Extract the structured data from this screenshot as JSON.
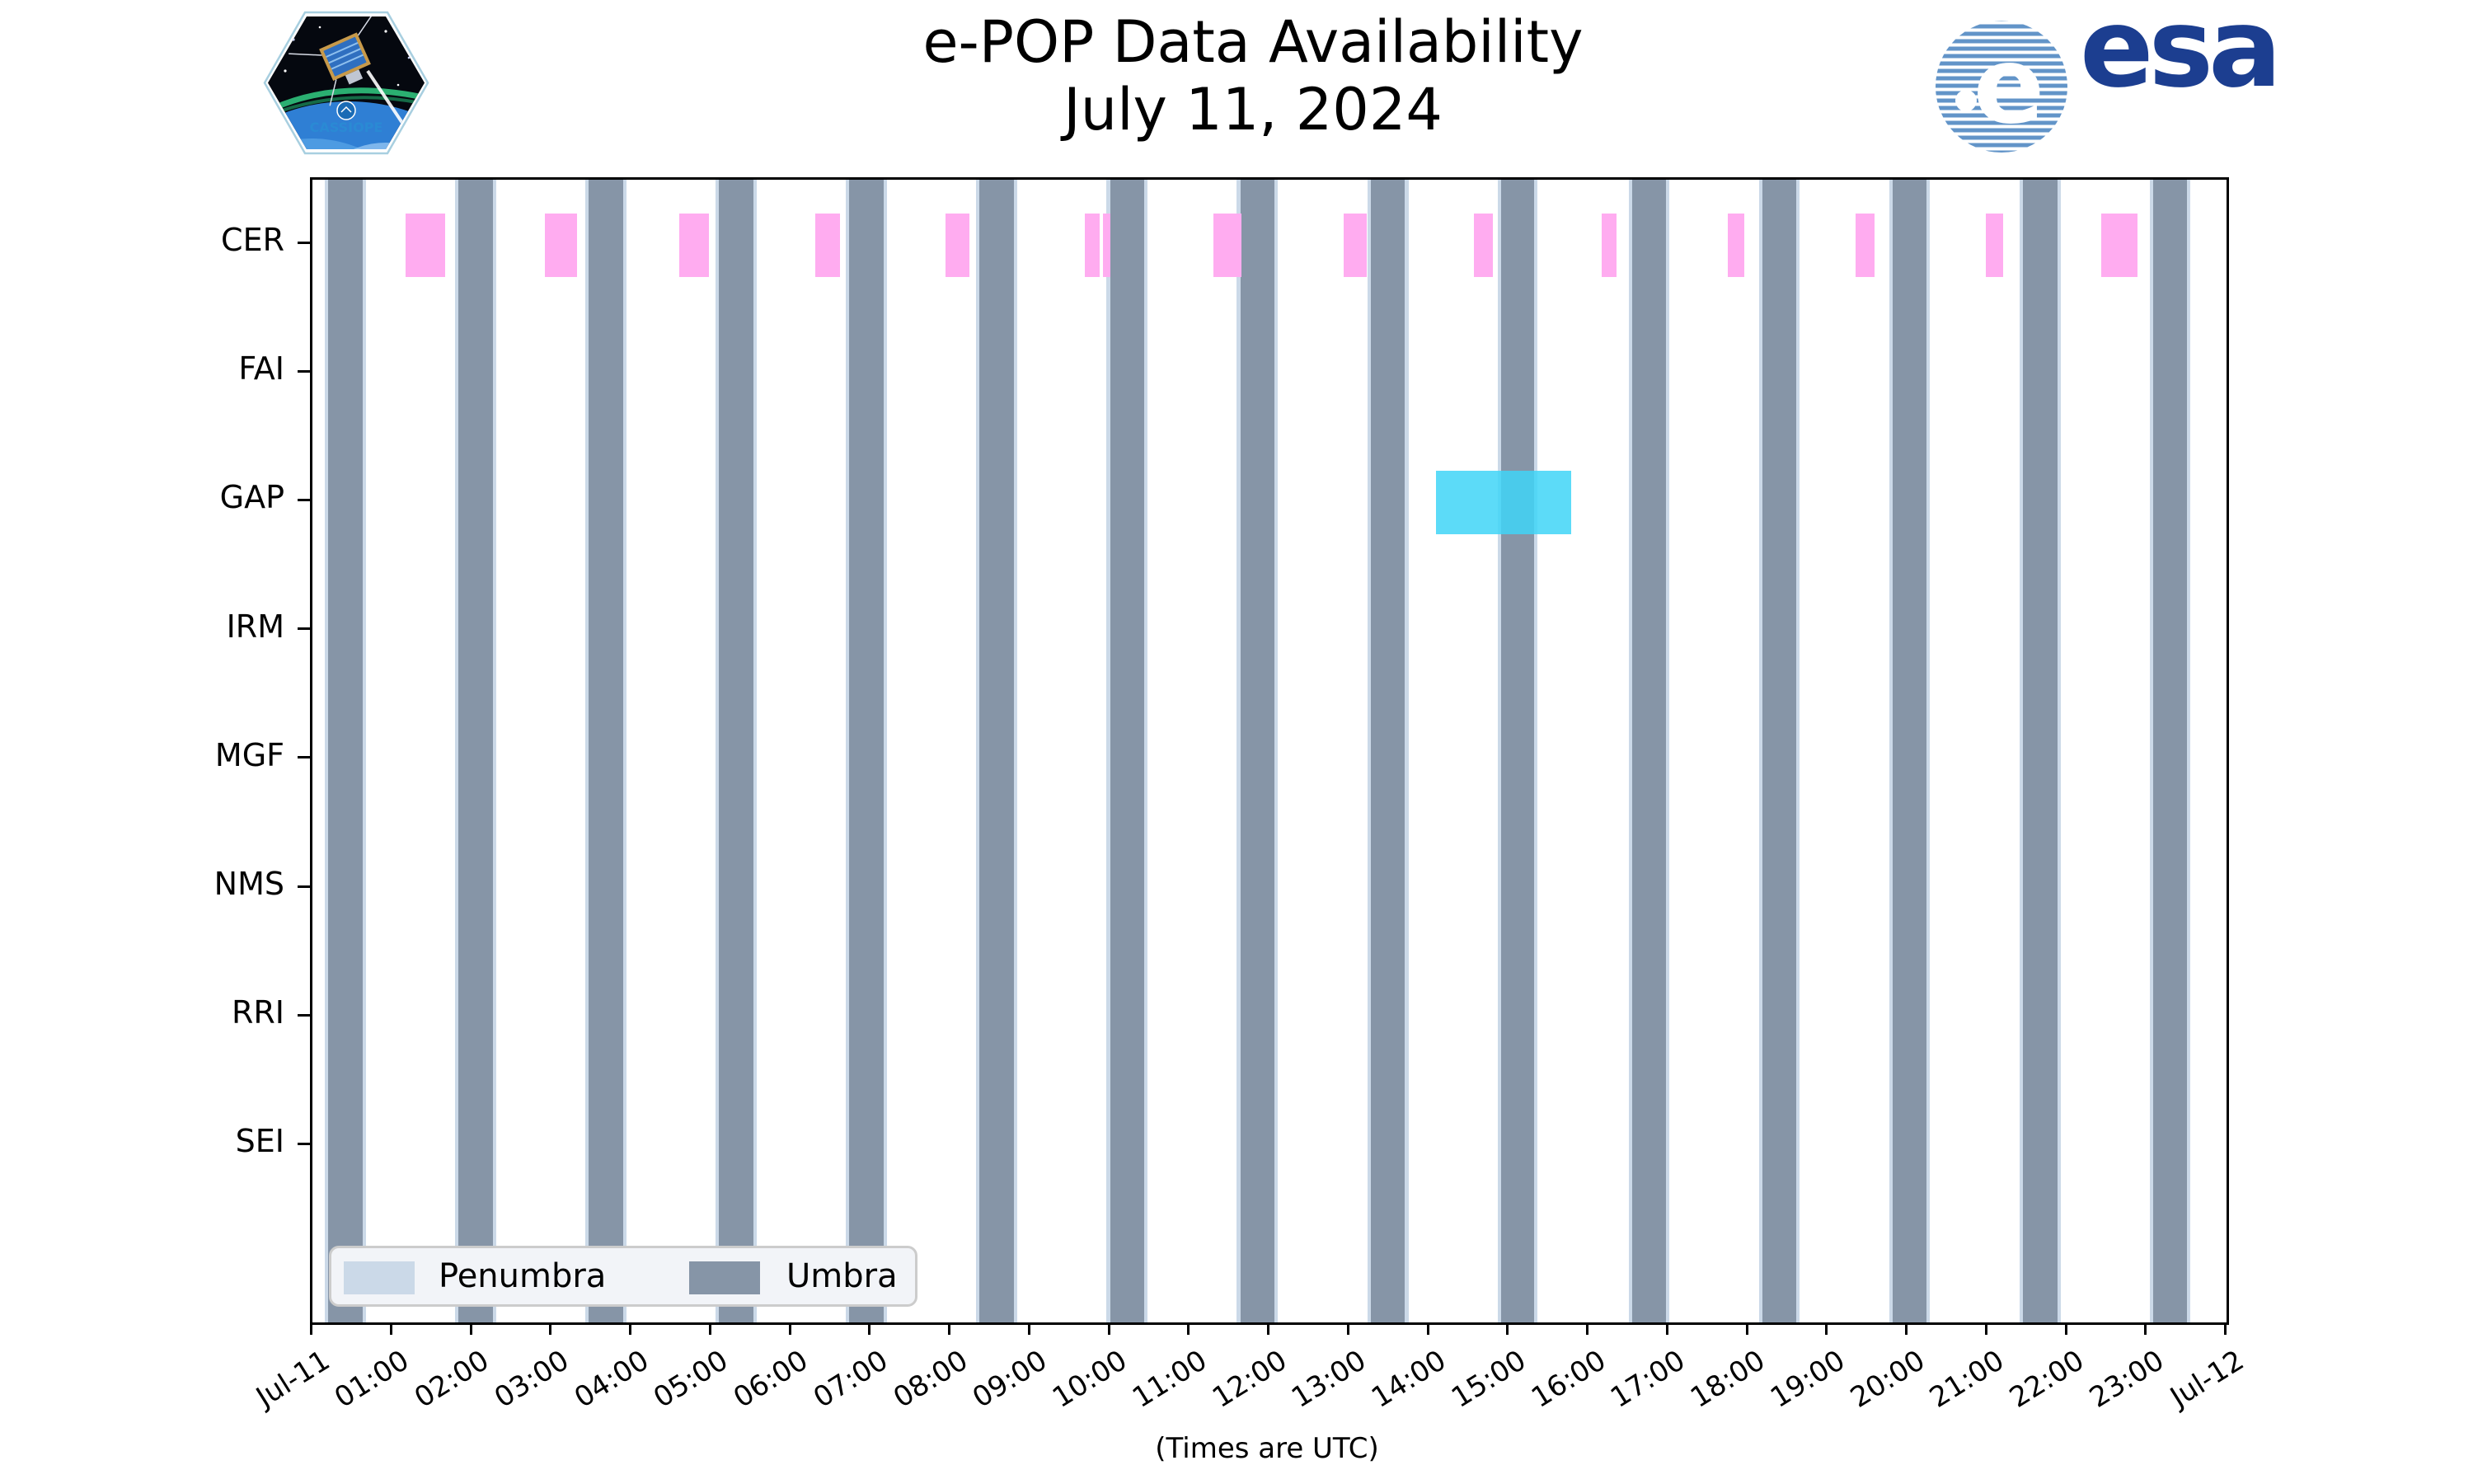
{
  "header": {
    "title_line1": "e-POP Data Availability",
    "title_line2": "July 11, 2024",
    "cassiope_label": "CASSIOPE",
    "esa_label": "esa"
  },
  "footer": {
    "xlabel": "(Times are UTC)"
  },
  "chart_data": {
    "type": "bar",
    "subtype": "timeline-availability",
    "title": "e-POP Data Availability",
    "subtitle": "July 11, 2024",
    "xlabel": "(Times are UTC)",
    "x_range_hours": [
      0,
      24
    ],
    "x_tick_labels": [
      "Jul-11",
      "01:00",
      "02:00",
      "03:00",
      "04:00",
      "05:00",
      "06:00",
      "07:00",
      "08:00",
      "09:00",
      "10:00",
      "11:00",
      "12:00",
      "13:00",
      "14:00",
      "15:00",
      "16:00",
      "17:00",
      "18:00",
      "19:00",
      "20:00",
      "21:00",
      "22:00",
      "23:00",
      "Jul-12"
    ],
    "rows": [
      "CER",
      "FAI",
      "GAP",
      "IRM",
      "MGF",
      "NMS",
      "RRI",
      "SEI"
    ],
    "grid": false,
    "legend_position": "lower-left",
    "legend": [
      {
        "label": "Penumbra",
        "color": "#CBD9E8"
      },
      {
        "label": "Umbra",
        "color": "#8695A7"
      }
    ],
    "colors": {
      "umbra": "#8695A7",
      "penumbra": "#CBD9E8",
      "cer_segments": "#FFACF0",
      "gap_segments": "rgba(64,213,247,0.85)",
      "axis": "#000000"
    },
    "penumbra_pad_minutes": 2.5,
    "umbra_intervals": [
      [
        "00:12",
        "00:38"
      ],
      [
        "01:50",
        "02:16"
      ],
      [
        "03:28",
        "03:54"
      ],
      [
        "05:06",
        "05:32"
      ],
      [
        "06:44",
        "07:10"
      ],
      [
        "08:22",
        "08:48"
      ],
      [
        "10:00",
        "10:26"
      ],
      [
        "11:38",
        "12:04"
      ],
      [
        "13:16",
        "13:42"
      ],
      [
        "14:54",
        "15:19"
      ],
      [
        "16:33",
        "16:58"
      ],
      [
        "18:11",
        "18:36"
      ],
      [
        "19:49",
        "20:14"
      ],
      [
        "21:27",
        "21:53"
      ],
      [
        "23:05",
        "23:30"
      ]
    ],
    "series": [
      {
        "row": "CER",
        "color": "#FFACF0",
        "intervals": [
          [
            "01:10",
            "01:40"
          ],
          [
            "02:55",
            "03:19"
          ],
          [
            "04:36",
            "04:58"
          ],
          [
            "06:18",
            "06:37"
          ],
          [
            "07:56",
            "08:14"
          ],
          [
            "09:41",
            "09:52"
          ],
          [
            "09:55",
            "10:00"
          ],
          [
            "11:18",
            "11:39"
          ],
          [
            "12:56",
            "13:13"
          ],
          [
            "14:34",
            "14:48"
          ],
          [
            "16:10",
            "16:21"
          ],
          [
            "17:45",
            "17:57"
          ],
          [
            "19:21",
            "19:35"
          ],
          [
            "20:59",
            "21:12"
          ],
          [
            "22:26",
            "22:53"
          ]
        ]
      },
      {
        "row": "GAP",
        "color": "rgba(64,213,247,0.85)",
        "intervals": [
          [
            "14:05",
            "15:47"
          ]
        ]
      }
    ]
  }
}
